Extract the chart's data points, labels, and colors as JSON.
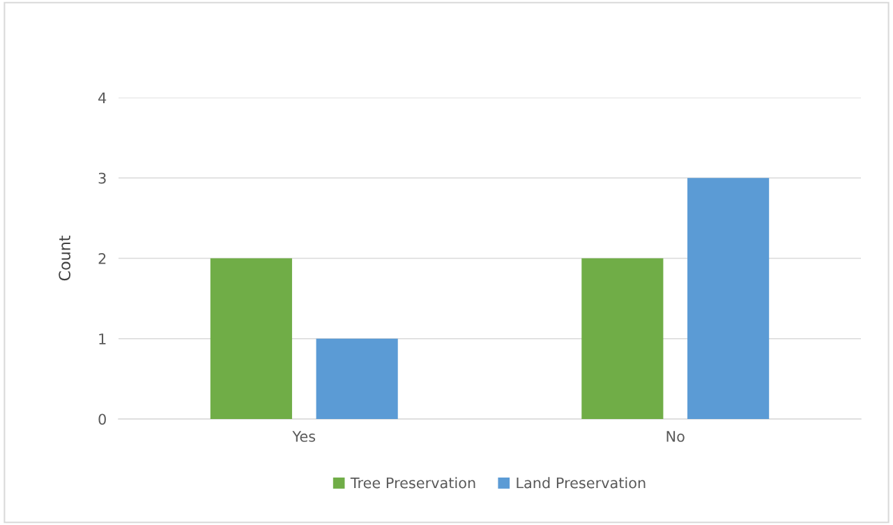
{
  "chart_data": {
    "type": "bar",
    "ylabel": "Count",
    "categories": [
      "Yes",
      "No"
    ],
    "series": [
      {
        "name": "Tree Preservation",
        "color": "#70ad47",
        "values": [
          2,
          2
        ]
      },
      {
        "name": "Land Preservation",
        "color": "#5b9bd5",
        "values": [
          1,
          3
        ]
      }
    ],
    "ylim": [
      0,
      4
    ],
    "yticks": [
      0,
      1,
      2,
      3,
      4
    ],
    "grid": "y",
    "legend": "bottom"
  }
}
